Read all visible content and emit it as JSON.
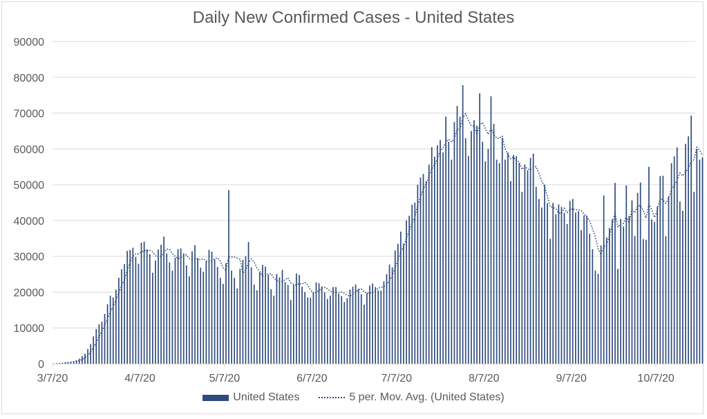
{
  "chart_data": {
    "type": "bar",
    "title": "Daily New Confirmed Cases - United States",
    "xlabel": "",
    "ylabel": "",
    "ylim": [
      0,
      90000
    ],
    "yticks": [
      "0",
      "10000",
      "20000",
      "30000",
      "40000",
      "50000",
      "60000",
      "70000",
      "80000",
      "90000"
    ],
    "xticks": [
      "3/7/20",
      "4/7/20",
      "5/7/20",
      "6/7/20",
      "7/7/20",
      "8/7/20",
      "9/7/20",
      "10/7/20"
    ],
    "xtick_day_offsets": [
      0,
      31,
      61,
      92,
      122,
      153,
      184,
      214
    ],
    "x_start": "3/7/20",
    "grid": true,
    "legend_position": "bottom",
    "series": [
      {
        "name": "United States",
        "kind": "bar",
        "color": "#2f4b7c",
        "values": [
          100,
          150,
          200,
          300,
          350,
          450,
          600,
          750,
          1000,
          1400,
          2100,
          2800,
          4100,
          5500,
          7600,
          9700,
          11000,
          11700,
          13900,
          16600,
          19000,
          18500,
          20700,
          24000,
          26400,
          27800,
          31500,
          31800,
          32400,
          29800,
          27900,
          33800,
          34100,
          32000,
          30600,
          25400,
          28800,
          31900,
          33200,
          35500,
          30800,
          28300,
          26000,
          29600,
          32000,
          32200,
          30800,
          27500,
          24400,
          31400,
          33100,
          29500,
          26800,
          25700,
          28600,
          31800,
          31300,
          29100,
          27000,
          24000,
          22300,
          28100,
          48500,
          26000,
          24000,
          21000,
          26500,
          29000,
          30000,
          34000,
          26900,
          22100,
          20500,
          25500,
          27600,
          27100,
          24800,
          20800,
          19000,
          25000,
          24100,
          26200,
          22800,
          22000,
          17800,
          22000,
          25200,
          24800,
          21500,
          20000,
          18500,
          18400,
          20000,
          22700,
          22500,
          21600,
          19900,
          18100,
          19000,
          21400,
          21400,
          19500,
          18900,
          17200,
          18300,
          20700,
          21500,
          22100,
          20900,
          19400,
          16500,
          19700,
          21800,
          22400,
          21400,
          20500,
          20400,
          23000,
          25000,
          27700,
          26900,
          31600,
          33500,
          36900,
          33500,
          40000,
          41300,
          44400,
          45000,
          50000,
          52000,
          53000,
          51000,
          55600,
          60500,
          57800,
          61000,
          62500,
          59000,
          69000,
          62000,
          57000,
          67500,
          72000,
          69000,
          77800,
          63000,
          58000,
          65000,
          68000,
          66500,
          75500,
          62000,
          56500,
          60000,
          74700,
          67000,
          57000,
          56000,
          63000,
          57000,
          59000,
          51000,
          58300,
          58000,
          56000,
          48000,
          55600,
          54000,
          57500,
          58700,
          49400,
          46000,
          43600,
          50000,
          44800,
          34900,
          44900,
          41700,
          44500,
          43800,
          42100,
          39000,
          45500,
          46000,
          42200,
          42600,
          37300,
          41400,
          41400,
          36300,
          32000,
          26000,
          25100,
          33000,
          47000,
          35300,
          37900,
          40300,
          50500,
          26500,
          40400,
          38300,
          49800,
          41300,
          45600,
          35700,
          47700,
          50600,
          34800,
          34600,
          55000,
          40300,
          39600,
          43900,
          52400,
          52500,
          35600,
          46700,
          56000,
          57900,
          60400,
          45300,
          42700,
          61400,
          63500,
          69300,
          48000,
          60000,
          57000,
          57600
        ]
      },
      {
        "name": "5 per. Mov. Avg. (United States)",
        "kind": "moving-average",
        "period": 5,
        "color": "#2f4b7c"
      }
    ]
  }
}
